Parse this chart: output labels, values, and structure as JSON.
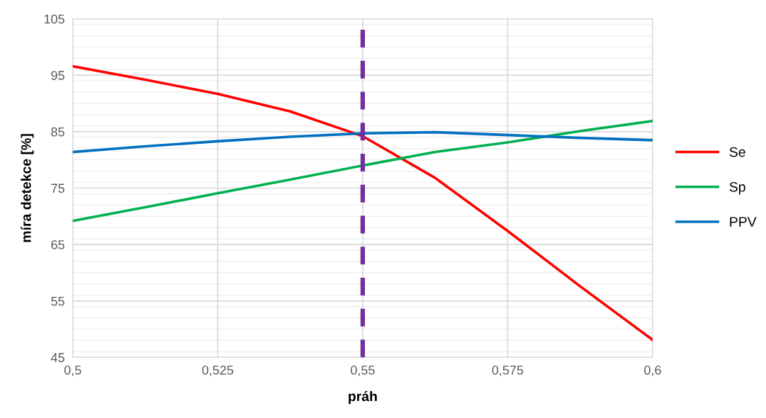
{
  "chart_data": {
    "type": "line",
    "xlabel": "práh",
    "ylabel": "míra detekce [%]",
    "xlim": [
      0.5,
      0.6
    ],
    "xticks": [
      {
        "value": 0.5,
        "label": "0,5"
      },
      {
        "value": 0.525,
        "label": "0,525"
      },
      {
        "value": 0.55,
        "label": "0,55"
      },
      {
        "value": 0.575,
        "label": "0,575"
      },
      {
        "value": 0.6,
        "label": "0,6"
      }
    ],
    "ylim": [
      45,
      105
    ],
    "yticks": [
      45,
      55,
      65,
      75,
      85,
      95,
      105
    ],
    "grid": true,
    "legend": "right",
    "marker": "none",
    "line_style": "solid",
    "x": [
      0.5,
      0.5125,
      0.525,
      0.5375,
      0.55,
      0.5625,
      0.575,
      0.5875,
      0.6
    ],
    "series": [
      {
        "name": "Se",
        "color": "#ff0000",
        "values": [
          96.6,
          94.2,
          91.7,
          88.6,
          84.2,
          76.8,
          67.4,
          57.6,
          48.1
        ]
      },
      {
        "name": "Sp",
        "color": "#00b050",
        "values": [
          69.2,
          71.6,
          74.1,
          76.5,
          79.0,
          81.4,
          83.1,
          85.1,
          86.9
        ]
      },
      {
        "name": "PPV",
        "color": "#0070c0",
        "values": [
          81.4,
          82.4,
          83.3,
          84.1,
          84.7,
          84.9,
          84.4,
          83.9,
          83.5
        ]
      }
    ],
    "ref_lines": [
      {
        "axis": "x",
        "value": 0.55,
        "color": "#7030a0",
        "line_style": "dashed"
      }
    ]
  }
}
